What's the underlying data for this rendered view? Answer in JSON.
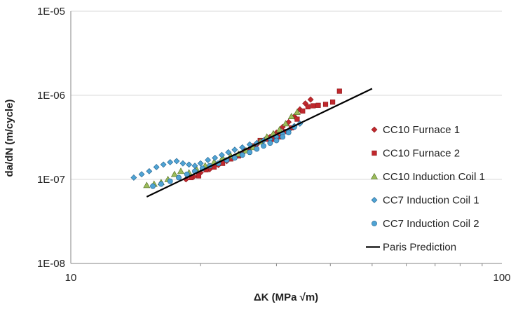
{
  "chart_data": {
    "type": "scatter",
    "xscale": "log",
    "yscale": "log",
    "xlim": [
      10,
      100
    ],
    "ylim": [
      1e-08,
      1e-05
    ],
    "xlabel": "ΔK (MPa √m)",
    "ylabel": "da/dN (m/cycle)",
    "x_ticks": [
      {
        "value": 10,
        "label": "10"
      },
      {
        "value": 100,
        "label": "100"
      }
    ],
    "y_ticks": [
      {
        "value": 1e-08,
        "label": "1E-08"
      },
      {
        "value": 1e-07,
        "label": "1E-07"
      },
      {
        "value": 1e-06,
        "label": "1E-06"
      },
      {
        "value": 1e-05,
        "label": "1E-05"
      }
    ],
    "grid": "horizontal major",
    "legend_position": "right",
    "series": [
      {
        "name": "CC10 Furnace 1",
        "marker": "diamond",
        "color": "#c0282d",
        "stroke": "#8e1a1d",
        "x": [
          18.5,
          19.3,
          20.0,
          21.0,
          22.0,
          23.0,
          24.0,
          25.0,
          26.0,
          27.0,
          28.0,
          29.0,
          30.0,
          31.0,
          32.0,
          33.0,
          34.0,
          35.0,
          36.0
        ],
        "y": [
          1e-07,
          1.08e-07,
          1.2e-07,
          1.32e-07,
          1.48e-07,
          1.65e-07,
          1.85e-07,
          2.05e-07,
          2.3e-07,
          2.6e-07,
          2.9e-07,
          3.2e-07,
          3.6e-07,
          4.2e-07,
          4.8e-07,
          5.6e-07,
          6.8e-07,
          8e-07,
          8.9e-07
        ]
      },
      {
        "name": "CC10 Furnace 2",
        "marker": "square",
        "color": "#c0282d",
        "stroke": "#8e1a1d",
        "x": [
          19.0,
          19.8,
          20.6,
          21.5,
          22.5,
          23.5,
          24.5,
          25.5,
          26.5,
          27.5,
          28.5,
          29.5,
          30.5,
          31.5,
          32.5,
          33.5,
          34.5,
          35.5,
          36.5,
          37.5,
          39.0,
          40.5,
          42.0
        ],
        "y": [
          1.05e-07,
          1.1e-07,
          1.3e-07,
          1.4e-07,
          1.55e-07,
          1.75e-07,
          1.9e-07,
          2.2e-07,
          2.5e-07,
          2.9e-07,
          3e-07,
          3e-07,
          3.2e-07,
          3.7e-07,
          4.1e-07,
          5.2e-07,
          6.5e-07,
          7.3e-07,
          7.5e-07,
          7.6e-07,
          7.8e-07,
          8.3e-07,
          1.12e-06
        ]
      },
      {
        "name": "CC10 Induction Coil 1",
        "marker": "triangle",
        "color": "#9bbb59",
        "stroke": "#4e6b22",
        "x": [
          15.0,
          15.6,
          16.2,
          16.8,
          17.4,
          18.0,
          18.8,
          19.6,
          20.5,
          21.5,
          22.5,
          23.5,
          24.5,
          25.5,
          26.5,
          27.5,
          28.5,
          29.5,
          30.5,
          31.5,
          32.5,
          33.5
        ],
        "y": [
          8.5e-08,
          8.8e-08,
          9.2e-08,
          1e-07,
          1.15e-07,
          1.25e-07,
          1.2e-07,
          1.3e-07,
          1.45e-07,
          1.6e-07,
          1.8e-07,
          1.9e-07,
          2e-07,
          2.2e-07,
          2.4e-07,
          2.8e-07,
          3.2e-07,
          3.5e-07,
          3.9e-07,
          4.6e-07,
          5.6e-07,
          6.3e-07
        ]
      },
      {
        "name": "CC7 Induction Coil 1",
        "marker": "diamond",
        "color": "#4fa3d4",
        "stroke": "#1f5f8b",
        "x": [
          14.0,
          14.6,
          15.2,
          15.8,
          16.4,
          17.0,
          17.6,
          18.2,
          18.8,
          19.4,
          20.0,
          20.8,
          21.6,
          22.4,
          23.2,
          24.0,
          25.0,
          26.0,
          27.0,
          28.0,
          29.0,
          30.0,
          31.0,
          32.0,
          33.0,
          34.0
        ],
        "y": [
          1.05e-07,
          1.15e-07,
          1.25e-07,
          1.4e-07,
          1.5e-07,
          1.6e-07,
          1.65e-07,
          1.55e-07,
          1.5e-07,
          1.45e-07,
          1.55e-07,
          1.7e-07,
          1.8e-07,
          1.95e-07,
          2.1e-07,
          2.25e-07,
          2.4e-07,
          2.6e-07,
          2.7e-07,
          2.9e-07,
          3e-07,
          3.2e-07,
          3.5e-07,
          3.8e-07,
          4.3e-07,
          4.6e-07
        ]
      },
      {
        "name": "CC7 Induction Coil 2",
        "marker": "circle",
        "color": "#4fa3d4",
        "stroke": "#1f5f8b",
        "x": [
          15.5,
          16.2,
          17.0,
          17.8,
          18.6,
          19.4,
          20.2,
          21.0,
          22.0,
          23.0,
          24.0,
          25.0,
          26.0,
          27.0,
          28.0,
          29.0,
          30.0,
          31.0,
          32.0,
          33.0
        ],
        "y": [
          8.3e-08,
          8.8e-08,
          9.5e-08,
          1.05e-07,
          1.15e-07,
          1.25e-07,
          1.35e-07,
          1.45e-07,
          1.55e-07,
          1.7e-07,
          1.8e-07,
          1.95e-07,
          2.1e-07,
          2.3e-07,
          2.5e-07,
          2.7e-07,
          2.9e-07,
          3.2e-07,
          3.6e-07,
          4.2e-07
        ]
      },
      {
        "name": "Paris Prediction",
        "marker": "line",
        "color": "#000000",
        "x": [
          15.0,
          50.0
        ],
        "y": [
          6.2e-08,
          1.2e-06
        ]
      }
    ]
  }
}
